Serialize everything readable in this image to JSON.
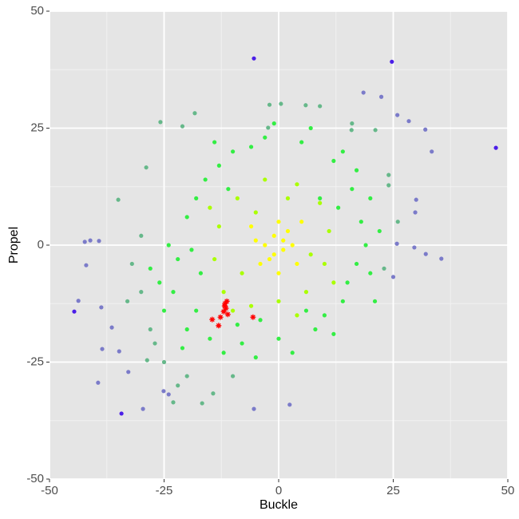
{
  "chart_data": {
    "type": "scatter",
    "x_label": "Buckle",
    "y_label": "Propel",
    "xlim": [
      -50,
      50
    ],
    "ylim": [
      -50,
      50
    ],
    "xticks": [
      -50,
      -25,
      0,
      25,
      50
    ],
    "yticks": [
      -50,
      -25,
      0,
      25,
      50
    ],
    "grid": true,
    "panel_color": "#e5e5e5",
    "series": [
      {
        "color": "#66b88a",
        "marker": "circle",
        "x": [
          -28,
          -30,
          -32,
          -25,
          -20,
          -10,
          24,
          26,
          23,
          -30,
          -2,
          16,
          -27,
          -22,
          -33,
          -23,
          -21,
          -25.8,
          -18.3,
          -28.9,
          -2.3,
          0.5,
          5.9,
          9,
          15.9,
          21.1,
          24,
          -16.7,
          -14.3,
          -28.7,
          -35
        ],
        "values": [
          -18,
          -10,
          -4,
          -25,
          -28,
          -28,
          15,
          5,
          -5,
          2,
          30,
          26,
          -21,
          -30,
          -12,
          -33.6,
          25.4,
          26.3,
          28.2,
          16.6,
          25.1,
          30.2,
          29.9,
          29.7,
          24.6,
          24.6,
          12.8,
          -33.8,
          -31.7,
          -24.6,
          9.7
        ]
      },
      {
        "color": "#33ee44",
        "marker": "circle",
        "x": [
          -20,
          -15,
          -8,
          0,
          8,
          14,
          17,
          18,
          16,
          12,
          5,
          -3,
          -10,
          -16,
          -20,
          -22,
          -23,
          -18,
          -12,
          -5,
          3,
          10,
          15,
          19,
          20,
          14,
          7,
          -6,
          -13,
          -18,
          -24,
          -26,
          -21,
          -9,
          12,
          20,
          22,
          17,
          -1,
          -14,
          -25,
          -17,
          9,
          -4,
          6,
          13,
          -11,
          -19,
          21,
          -28
        ],
        "values": [
          -18,
          -20,
          -21,
          -20,
          -18,
          -12,
          -4,
          5,
          12,
          18,
          22,
          23,
          20,
          14,
          6,
          -3,
          -10,
          -14,
          -23,
          -24,
          -23,
          -15,
          -8,
          0,
          10,
          20,
          25,
          21,
          17,
          10,
          0,
          -8,
          -22,
          -17,
          -19,
          -6,
          3,
          16,
          26,
          22,
          -14,
          -6,
          10,
          -16,
          -14,
          8,
          12,
          -1,
          -12,
          -5
        ]
      },
      {
        "color": "#aaff00",
        "marker": "circle",
        "x": [
          -12,
          -6,
          0,
          6,
          10,
          11,
          9,
          4,
          -3,
          -9,
          -13,
          -14,
          -8,
          7,
          2,
          -5,
          12,
          -10,
          4,
          -15
        ],
        "values": [
          -10,
          -13,
          -12,
          -10,
          -4,
          3,
          9,
          13,
          14,
          10,
          4,
          -3,
          -6,
          -2,
          10,
          7,
          -8,
          -14,
          -15,
          8
        ]
      },
      {
        "color": "#ffff00",
        "marker": "circle",
        "x": [
          -3,
          -1,
          1,
          -2,
          2,
          -5,
          3,
          0,
          -4,
          4,
          0,
          -6,
          5,
          -1,
          1
        ],
        "values": [
          0,
          2,
          -1,
          -3,
          3,
          1,
          0,
          5,
          -4,
          -4,
          -6,
          4,
          5,
          -2,
          1
        ]
      },
      {
        "color": "#7b7bc9",
        "marker": "circle",
        "x": [
          -39.4,
          -43.7,
          -42.3,
          -41.1,
          -39.2,
          -42,
          -29.6,
          -5.4,
          2.4,
          35.5,
          33.4,
          32,
          28.4,
          25.9,
          22.4,
          18.5,
          29.8,
          30,
          25.8,
          25,
          29.6,
          32.1,
          -38.7,
          -38.5,
          -34.8,
          -32.8,
          -24,
          -25.1,
          -36.4
        ],
        "values": [
          -29.4,
          -11.9,
          0.7,
          1,
          0.9,
          -4.3,
          -35,
          -35,
          -34.1,
          -2.9,
          20,
          24.7,
          26.5,
          27.8,
          31.7,
          32.6,
          7,
          9.7,
          0.3,
          -6.8,
          -0.5,
          -1.9,
          -13.3,
          -22.2,
          -22.7,
          -27.1,
          -31.9,
          -31.2,
          -17.6
        ]
      },
      {
        "color": "#4b1ee8",
        "marker": "circle",
        "x": [
          -5.4,
          24.7,
          47.4,
          -34.3,
          -44.6
        ],
        "values": [
          39.9,
          39.2,
          20.8,
          -36,
          -14.2
        ]
      },
      {
        "color": "#ff0000",
        "marker": "star",
        "x": [
          -14.5,
          -12.7,
          -12,
          -11.7,
          -11.1,
          -11.5,
          -13.1,
          -5.6,
          -11.8,
          -11.3
        ],
        "values": [
          -15.9,
          -15.4,
          -14.2,
          -12.5,
          -14.8,
          -13.5,
          -17.2,
          -15.4,
          -13,
          -12
        ]
      }
    ]
  }
}
